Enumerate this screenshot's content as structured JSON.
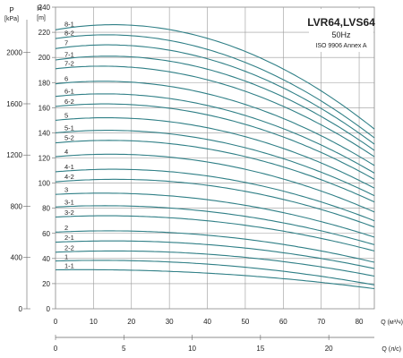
{
  "chart_data": {
    "type": "line",
    "title": "LVR64,LVS64",
    "subtitle": "50Hz",
    "note": "ISO 9906 Annex A",
    "left_axis": {
      "label_top": "P",
      "label_unit": "[kPa]",
      "ticks": [
        "0",
        "400",
        "800",
        "1200",
        "1600",
        "2000"
      ],
      "values": [
        0,
        400,
        800,
        1200,
        1600,
        2000
      ]
    },
    "y_axis": {
      "label_top": "H",
      "label_unit": "[m]",
      "ticks": [
        "0",
        "20",
        "40",
        "60",
        "80",
        "100",
        "120",
        "140",
        "160",
        "180",
        "200",
        "220",
        "240"
      ],
      "ylim": [
        0,
        240
      ]
    },
    "x_axis": {
      "label": "Q (м³/ч)",
      "ticks": [
        "0",
        "10",
        "20",
        "30",
        "40",
        "50",
        "60",
        "70",
        "80"
      ],
      "xlim": [
        0,
        84
      ]
    },
    "x2_axis": {
      "label": "Q (л/с)",
      "ticks": [
        "0",
        "5",
        "10",
        "15",
        "20"
      ],
      "values": [
        0,
        5,
        10,
        15,
        20
      ]
    },
    "series": [
      {
        "name": "1-1",
        "h0": 31,
        "hpeak": 31,
        "hend": 16
      },
      {
        "name": "1",
        "h0": 38,
        "hpeak": 38.5,
        "hend": 19
      },
      {
        "name": "2-2",
        "h0": 45,
        "hpeak": 46,
        "hend": 26
      },
      {
        "name": "2-1",
        "h0": 53,
        "hpeak": 54,
        "hend": 32
      },
      {
        "name": "2",
        "h0": 61,
        "hpeak": 62,
        "hend": 37
      },
      {
        "name": "3-2",
        "h0": 73,
        "hpeak": 74,
        "hend": 46
      },
      {
        "name": "3-1",
        "h0": 81,
        "hpeak": 82,
        "hend": 51
      },
      {
        "name": "3",
        "h0": 91,
        "hpeak": 92,
        "hend": 57
      },
      {
        "name": "4-2",
        "h0": 101,
        "hpeak": 103,
        "hend": 65
      },
      {
        "name": "4-1",
        "h0": 109,
        "hpeak": 111,
        "hend": 70
      },
      {
        "name": "4",
        "h0": 121,
        "hpeak": 123,
        "hend": 77
      },
      {
        "name": "5-2",
        "h0": 132,
        "hpeak": 134,
        "hend": 85
      },
      {
        "name": "5-1",
        "h0": 140,
        "hpeak": 142,
        "hend": 90
      },
      {
        "name": "5",
        "h0": 150,
        "hpeak": 152,
        "hend": 96
      },
      {
        "name": "6-2",
        "h0": 161,
        "hpeak": 163,
        "hend": 103
      },
      {
        "name": "6-1",
        "h0": 169,
        "hpeak": 171,
        "hend": 108
      },
      {
        "name": "6",
        "h0": 179,
        "hpeak": 181,
        "hend": 114
      },
      {
        "name": "7-2",
        "h0": 191,
        "hpeak": 193,
        "hend": 121
      },
      {
        "name": "7-1",
        "h0": 198,
        "hpeak": 201,
        "hend": 126
      },
      {
        "name": "7",
        "h0": 207,
        "hpeak": 210,
        "hend": 131
      },
      {
        "name": "8-2",
        "h0": 215,
        "hpeak": 218,
        "hend": 136
      },
      {
        "name": "8-1",
        "h0": 222,
        "hpeak": 226,
        "hend": 143
      }
    ],
    "grid": true,
    "line_color": "#2f7f86"
  }
}
